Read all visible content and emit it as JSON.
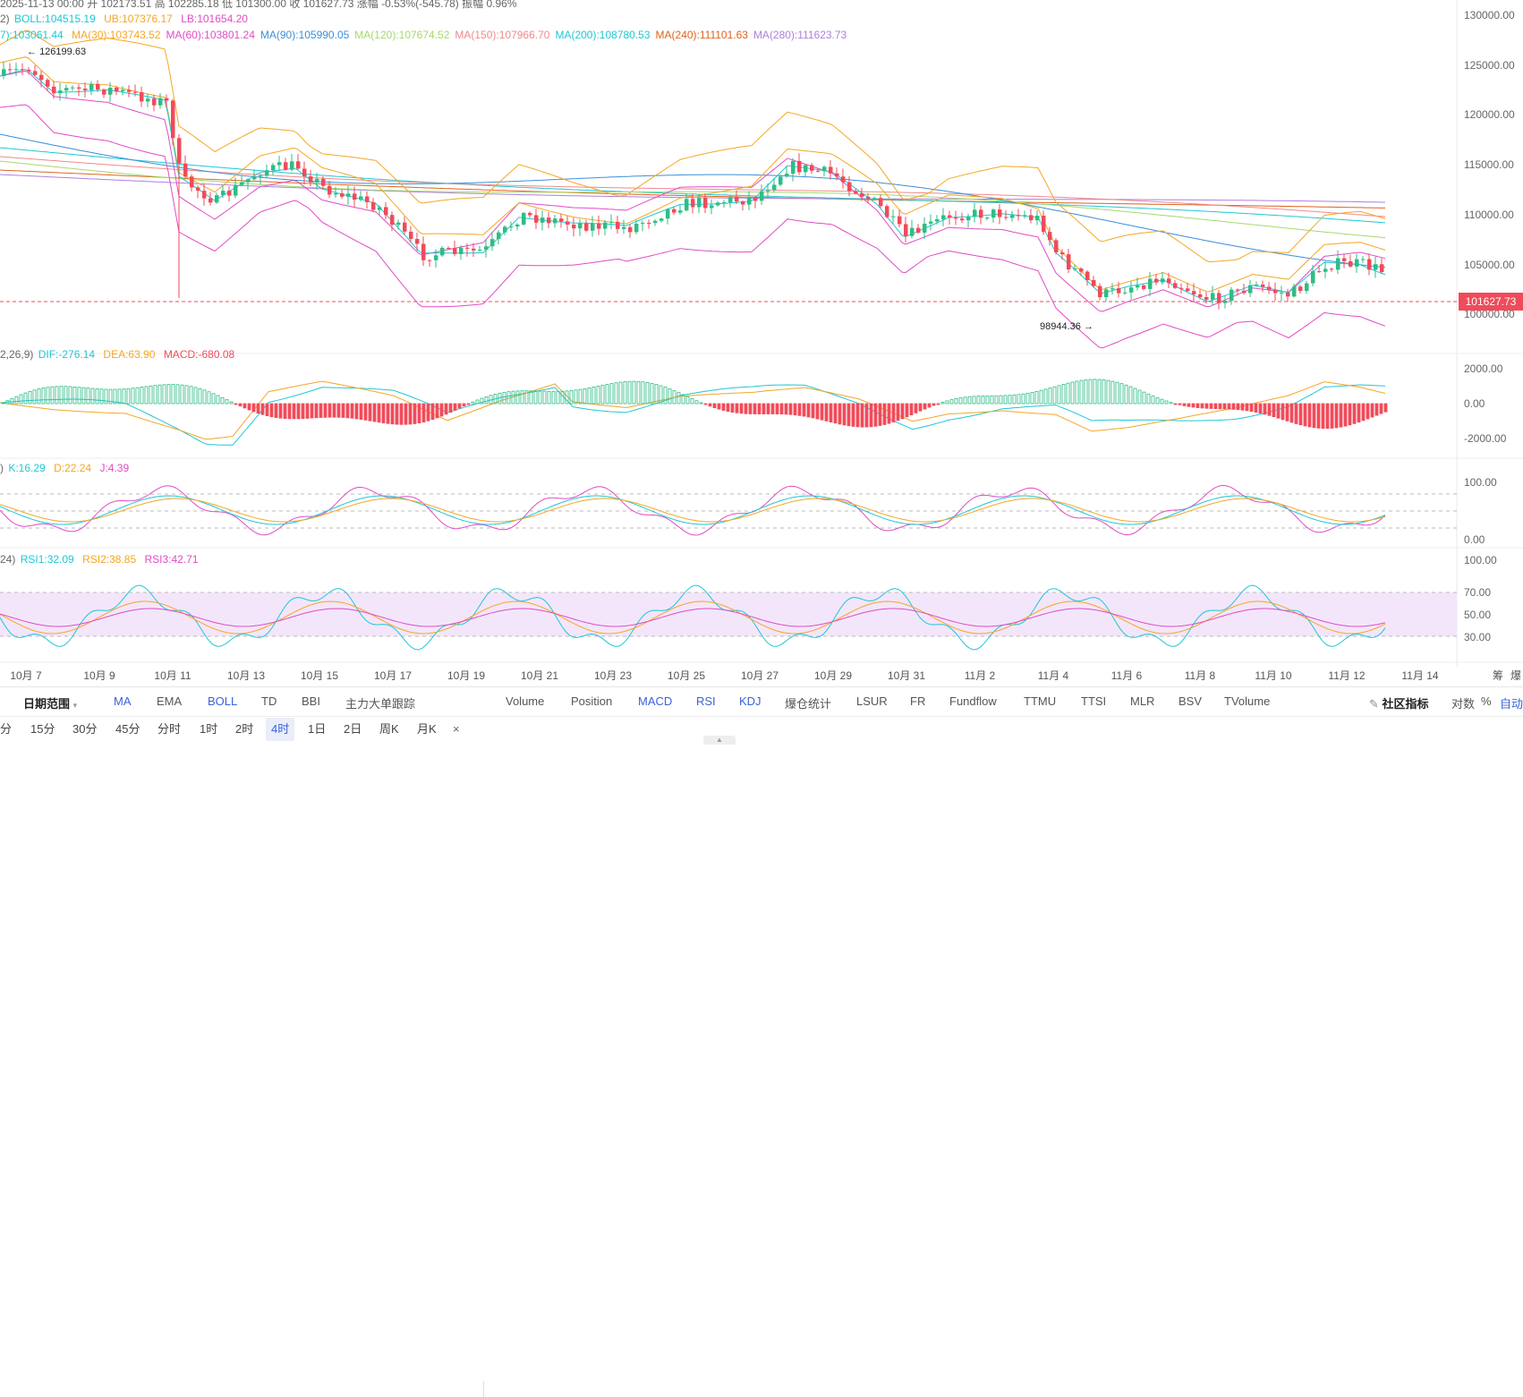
{
  "header": {
    "ohlc": "2025-11-13 00:00  开 102173.51  高 102285.18  低 101300.00  收 101627.73  涨幅 -0.53%(-545.78)  振幅 0.96%",
    "boll_prefix": "2)",
    "boll": "BOLL:104515.19",
    "ub": "UB:107376.17",
    "lb": "LB:101654.20",
    "ma_prefix": "7):103061.44",
    "ma": [
      {
        "text": "MA(30):103743.52",
        "color": "#f5a623"
      },
      {
        "text": "MA(60):103801.24",
        "color": "#e14bc6"
      },
      {
        "text": "MA(90):105990.05",
        "color": "#3b8fd9"
      },
      {
        "text": "MA(120):107674.52",
        "color": "#a6d96a"
      },
      {
        "text": "MA(150):107966.70",
        "color": "#f08a8a"
      },
      {
        "text": "MA(200):108780.53",
        "color": "#1fc7d4"
      },
      {
        "text": "MA(240):111101.63",
        "color": "#e0621b"
      },
      {
        "text": "MA(280):111623.73",
        "color": "#b07ee0"
      }
    ]
  },
  "price_axis": [
    "130000.00",
    "125000.00",
    "120000.00",
    "115000.00",
    "110000.00",
    "105000.00",
    "100000.00"
  ],
  "current_price": "101627.73",
  "annotations": {
    "high": "126199.63",
    "low": "98944.36"
  },
  "macd": {
    "prefix": "2,26,9)",
    "dif": "DIF:-276.14",
    "dea": "DEA:63.90",
    "macd": "MACD:-680.08",
    "axis": [
      "2000.00",
      "0.00",
      "-2000.00"
    ]
  },
  "kdj": {
    "prefix": ")",
    "k": "K:16.29",
    "d": "D:22.24",
    "j": "J:4.39",
    "axis": [
      "100.00",
      "0.00"
    ]
  },
  "rsi": {
    "prefix": "24)",
    "rsi1": "RSI1:32.09",
    "rsi2": "RSI2:38.85",
    "rsi3": "RSI3:42.71",
    "axis": [
      "100.00",
      "70.00",
      "50.00",
      "30.00"
    ]
  },
  "dates": [
    "10月 7",
    "10月 9",
    "10月 11",
    "10月 13",
    "10月 15",
    "10月 17",
    "10月 19",
    "10月 21",
    "10月 23",
    "10月 25",
    "10月 27",
    "10月 29",
    "10月 31",
    "11月 2",
    "11月 4",
    "11月 6",
    "11月 8",
    "11月 10",
    "11月 12",
    "11月 14"
  ],
  "date_right": [
    "筹",
    "爆"
  ],
  "toolbar": {
    "date_range": "日期范围",
    "overlays": [
      "MA",
      "EMA",
      "BOLL",
      "TD",
      "BBI",
      "主力大单跟踪"
    ],
    "indicators": [
      "Volume",
      "Position",
      "MACD",
      "RSI",
      "KDJ",
      "爆仓统计",
      "LSUR",
      "FR",
      "Fundflow",
      "TTMU",
      "TTSI",
      "MLR",
      "BSV",
      "TVolume"
    ],
    "community": "社区指标",
    "log": "对数",
    "percent": "%",
    "auto": "自动"
  },
  "timeframes": [
    "分",
    "15分",
    "30分",
    "45分",
    "分时",
    "1时",
    "2时",
    "4时",
    "1日",
    "2日",
    "周K",
    "月K"
  ],
  "active_timeframe": "4时",
  "close_symbol": "×",
  "colors": {
    "up": "#2ebd85",
    "down": "#f04b5a",
    "ub": "#f5a623",
    "lb": "#e14bc6",
    "boll": "#1fc7d4",
    "k": "#1fc7d4",
    "d": "#f5a623",
    "j": "#e14bc6"
  }
}
